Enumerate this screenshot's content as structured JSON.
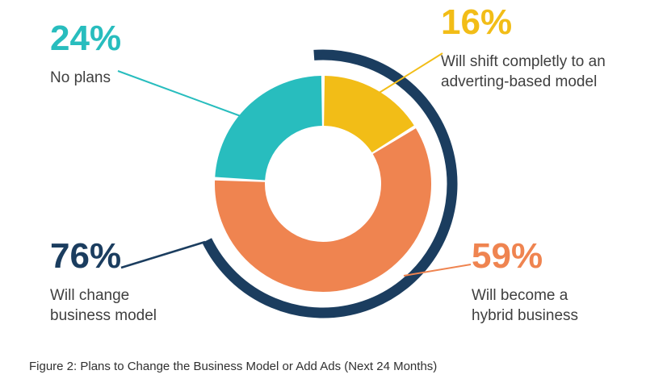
{
  "figure": {
    "caption": "Figure 2: Plans to Change the Business Model or Add Ads (Next 24 Months)"
  },
  "chart_data": {
    "type": "pie",
    "donut": true,
    "title": "Plans to Change the Business Model or Add Ads (Next 24 Months)",
    "start_deg": 0,
    "segments": [
      {
        "id": "advertising",
        "value": 16,
        "pct_label": "16%",
        "label": "Will shift completly to an adverting-based model",
        "color": "#f2bd17"
      },
      {
        "id": "hybrid",
        "value": 59,
        "pct_label": "59%",
        "label": "Will become a hybrid business",
        "color": "#ef8450"
      },
      {
        "id": "no-plans",
        "value": 24,
        "pct_label": "24%",
        "label": "No plans",
        "color": "#28bdbe"
      }
    ],
    "outer_arc": {
      "id": "change-model",
      "value": 76,
      "pct_label": "76%",
      "label": "Will change business model",
      "color": "#1b3d5f",
      "start_deg": -4,
      "end_deg": 244
    }
  }
}
